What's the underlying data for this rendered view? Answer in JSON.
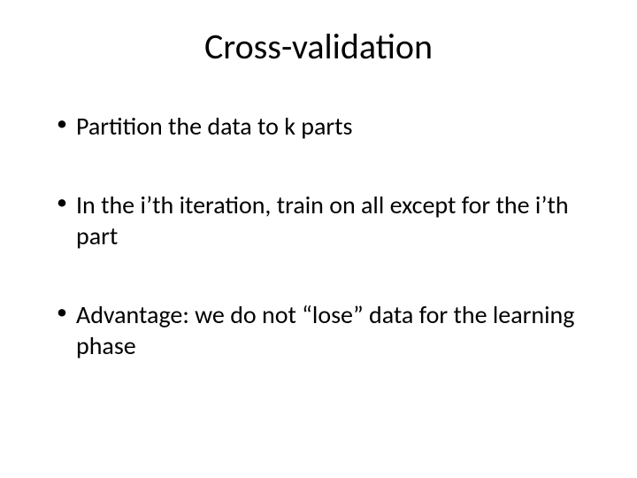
{
  "slide": {
    "title": "Cross-validation",
    "bullets": [
      "Partition the data to k parts",
      "In the i’th iteration, train on all except for the i’th part",
      "Advantage: we do not “lose” data for the learning phase"
    ],
    "style": {
      "background_color": "#ffffff",
      "text_color": "#000000",
      "title_fontsize": 40,
      "bullet_fontsize": 28,
      "font_family": "Calibri"
    }
  }
}
